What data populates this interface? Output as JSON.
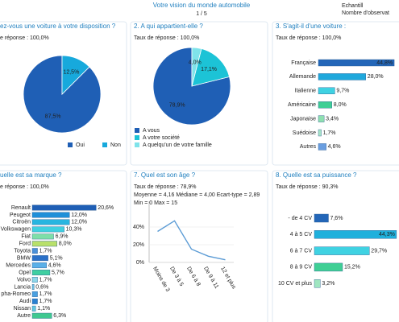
{
  "header": {
    "title": "Votre vision du monde automobile",
    "page": "1 / 5",
    "sample": "Echantill",
    "observations": "Nombre d'observat"
  },
  "chart_data": [
    {
      "type": "pie",
      "title": "ez-vous une voiture à votre disposition ?",
      "subtitle": "e réponse : 100,0%",
      "categories": [
        "Oui",
        "Non"
      ],
      "values": [
        87.5,
        12.5
      ],
      "value_labels": [
        "87,5%",
        "12,5%"
      ],
      "colors": [
        "#1f5fb5",
        "#17a9dc"
      ]
    },
    {
      "type": "pie",
      "title": "2. A qui appartient-elle ?",
      "subtitle": "Taux de réponse : 100,0%",
      "categories": [
        "A vous",
        "A votre société",
        "A quelqu'un de votre famille"
      ],
      "values": [
        78.9,
        17.1,
        4.0
      ],
      "value_labels": [
        "78,9%",
        "17,1%",
        "4,0%"
      ],
      "colors": [
        "#1f5fb5",
        "#1cc3d6",
        "#7fe3ea"
      ]
    },
    {
      "type": "bar",
      "title": "3. S'agit-il d'une voiture :",
      "subtitle": "Taux de réponse : 100,0%",
      "categories": [
        "Française",
        "Allemande",
        "Italienne",
        "Américaine",
        "Japonaise",
        "Suédoise",
        "Autres"
      ],
      "values": [
        44.8,
        28.0,
        9.7,
        8.0,
        3.4,
        1.7,
        4.6
      ],
      "value_labels": [
        "44,8%",
        "28,0%",
        "9,7%",
        "8,0%",
        "3,4%",
        "1,7%",
        "4,6%"
      ],
      "colors": [
        "#2366b8",
        "#1fa8dc",
        "#3fd2e2",
        "#3fcf95",
        "#8fe0b0",
        "#a8e6c8",
        "#6a9ee0"
      ]
    },
    {
      "type": "bar",
      "title": "uelle est sa marque ?",
      "subtitle": "e réponse : 100,0%",
      "categories": [
        "Renault",
        "Peugeot",
        "Citroën",
        "Volkswagen",
        "Fiat",
        "Ford",
        "Toyota",
        "BMW",
        "Mercedes",
        "Opel",
        "Volvo",
        "Lancia",
        "pha-Romeo",
        "Audi",
        "Nissan",
        "Autre"
      ],
      "values": [
        20.6,
        12.0,
        12.0,
        10.3,
        6.9,
        8.0,
        1.7,
        5.1,
        4.6,
        5.7,
        1.7,
        0.6,
        1.7,
        1.7,
        1.1,
        6.3
      ],
      "value_labels": [
        "20,6%",
        "12,0%",
        "12,0%",
        "10,3%",
        "6,9%",
        "8,0%",
        "1,7%",
        "5,1%",
        "4,6%",
        "5,7%",
        "1,7%",
        "0,6%",
        "1,7%",
        "1,7%",
        "1,1%",
        "6,3%"
      ],
      "colors": [
        "#1f5fb5",
        "#1f8fd8",
        "#27b5e0",
        "#3fd0e0",
        "#7edfa8",
        "#b8e06a",
        "#4a90d9",
        "#2a70c8",
        "#5ab0e8",
        "#3fcfa0",
        "#8fd8e8",
        "#6fc0e0",
        "#4aa0e0",
        "#2a80d0",
        "#60c8e0",
        "#40c890"
      ]
    },
    {
      "type": "line",
      "title": "7. Quel est son âge ?",
      "subtitle": "Taux de réponse : 78,9%",
      "annotations": [
        "Moyenne = 4,16   Médiane = 4,00   Ecart-type = 2,89",
        "Min = 0   Max = 15"
      ],
      "categories": [
        "Moins de 3",
        "De 3 à 5",
        "De 6 à 8",
        "De 9 à 11",
        "12 et plus"
      ],
      "values": [
        35,
        47,
        15,
        7,
        3
      ],
      "ylim": [
        0,
        60
      ],
      "yticks": [
        {
          "value": 0,
          "label": "0%"
        },
        {
          "value": 20,
          "label": "20%"
        },
        {
          "value": 40,
          "label": "40%"
        }
      ],
      "color": "#5b9bd5",
      "grid": true
    },
    {
      "type": "bar",
      "title": "8. Quelle est sa puissance ?",
      "subtitle": "Taux de réponse : 90,3%",
      "categories": [
        "- de 4 CV",
        "4 à 5 CV",
        "6 à 7 CV",
        "8 à 9 CV",
        "10 CV et plus"
      ],
      "values": [
        7.6,
        44.3,
        29.7,
        15.2,
        3.2
      ],
      "value_labels": [
        "7,6%",
        "44,3%",
        "29,7%",
        "15,2%",
        "3,2%"
      ],
      "colors": [
        "#2366b8",
        "#1fb0dc",
        "#3fd2e2",
        "#3fcf95",
        "#9fe6c0"
      ]
    }
  ]
}
